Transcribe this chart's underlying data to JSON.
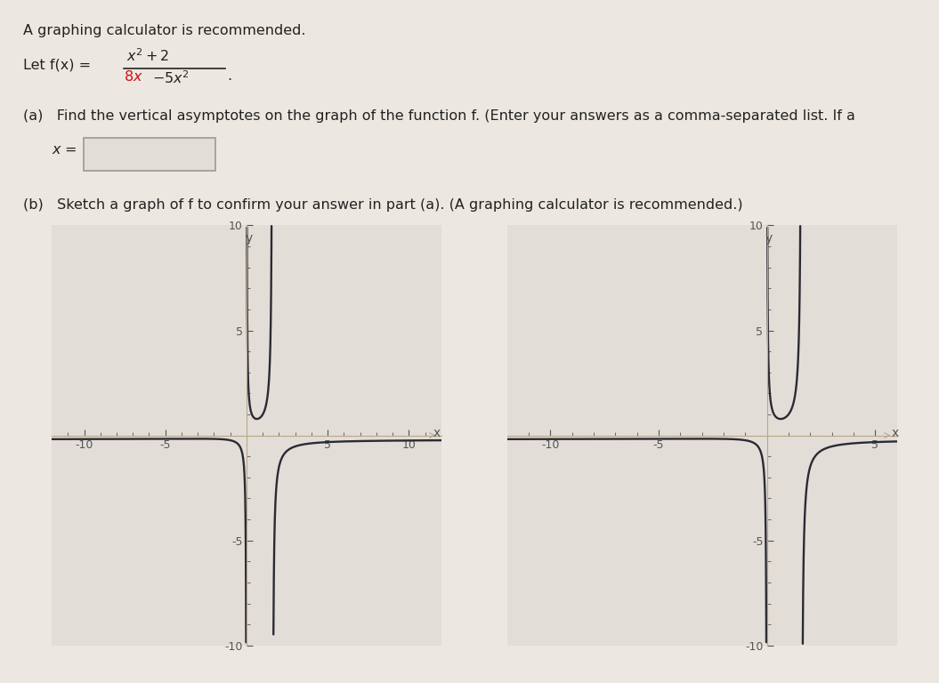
{
  "title_text": "A graphing calculator is recommended.",
  "part_a_text": "(a)   Find the vertical asymptotes on the graph of the function f. (Enter your answers as a comma-separated list. If a",
  "part_b_text": "(b)   Sketch a graph of f to confirm your answer in part (a). (A graphing calculator is recommended.)",
  "page_bg": "#ece8e1",
  "graph_bg": "#e2ddd6",
  "curve_color": "#2a2a35",
  "axes_color": "#b8a888",
  "tick_color": "#555555",
  "text_color": "#222222",
  "red_color": "#cc1111",
  "asymptote1": 0.0,
  "asymptote2": 1.6,
  "ylim": [
    -10,
    10
  ],
  "graph1_xlim": [
    -12,
    12
  ],
  "graph2_xlim": [
    -12,
    6
  ],
  "yticks": [
    -10,
    -5,
    5,
    10
  ],
  "xticks_left": [
    -10,
    -5,
    5,
    10
  ],
  "xticks_right": [
    -10,
    -5,
    5
  ],
  "clip_ymin": -10,
  "clip_ymax": 10
}
